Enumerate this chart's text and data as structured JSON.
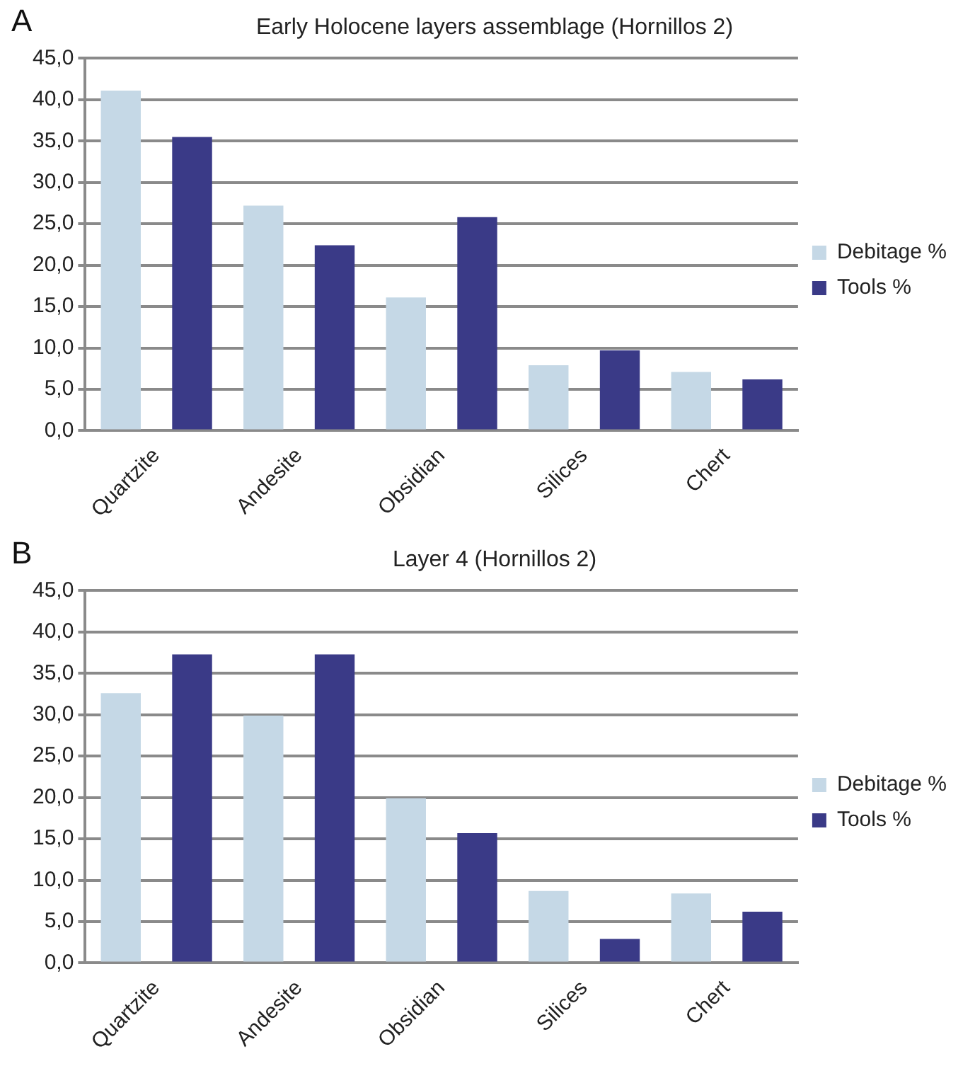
{
  "chart_data": [
    {
      "type": "bar",
      "title": "Early Holocene layers assemblage (Hornillos 2)",
      "annotations": [
        "A"
      ],
      "categories": [
        "Quartzite",
        "Andesite",
        "Obsidian",
        "Silices",
        "Chert"
      ],
      "series": [
        {
          "name": "Debitage %",
          "color": "#c5d8e6",
          "values": [
            41.1,
            27.2,
            16.1,
            7.9,
            7.1
          ]
        },
        {
          "name": "Tools %",
          "color": "#3a3a87",
          "values": [
            35.5,
            22.4,
            25.8,
            9.7,
            6.2
          ]
        }
      ],
      "ylim": [
        0,
        45
      ],
      "yticks": [
        {
          "value": 0,
          "label": "0,0"
        },
        {
          "value": 5,
          "label": "5,0"
        },
        {
          "value": 10,
          "label": "10,0"
        },
        {
          "value": 15,
          "label": "15,0"
        },
        {
          "value": 20,
          "label": "20,0"
        },
        {
          "value": 25,
          "label": "25,0"
        },
        {
          "value": 30,
          "label": "30,0"
        },
        {
          "value": 35,
          "label": "35,0"
        },
        {
          "value": 40,
          "label": "40,0"
        },
        {
          "value": 45,
          "label": "45,0"
        }
      ],
      "grid": "y",
      "legend": "right"
    },
    {
      "type": "bar",
      "title": "Layer 4 (Hornillos 2)",
      "annotations": [
        "B"
      ],
      "categories": [
        "Quartzite",
        "Andesite",
        "Obsidian",
        "Silices",
        "Chert"
      ],
      "series": [
        {
          "name": "Debitage %",
          "color": "#c5d8e6",
          "values": [
            32.6,
            29.9,
            19.9,
            8.7,
            8.4
          ]
        },
        {
          "name": "Tools %",
          "color": "#3a3a87",
          "values": [
            37.3,
            37.3,
            15.7,
            2.9,
            6.2
          ]
        }
      ],
      "ylim": [
        0,
        45
      ],
      "yticks": [
        {
          "value": 0,
          "label": "0,0"
        },
        {
          "value": 5,
          "label": "5,0"
        },
        {
          "value": 10,
          "label": "10,0"
        },
        {
          "value": 15,
          "label": "15,0"
        },
        {
          "value": 20,
          "label": "20,0"
        },
        {
          "value": 25,
          "label": "25,0"
        },
        {
          "value": 30,
          "label": "30,0"
        },
        {
          "value": 35,
          "label": "35,0"
        },
        {
          "value": 40,
          "label": "40,0"
        },
        {
          "value": 45,
          "label": "45,0"
        }
      ],
      "grid": "y",
      "legend": "right"
    }
  ]
}
